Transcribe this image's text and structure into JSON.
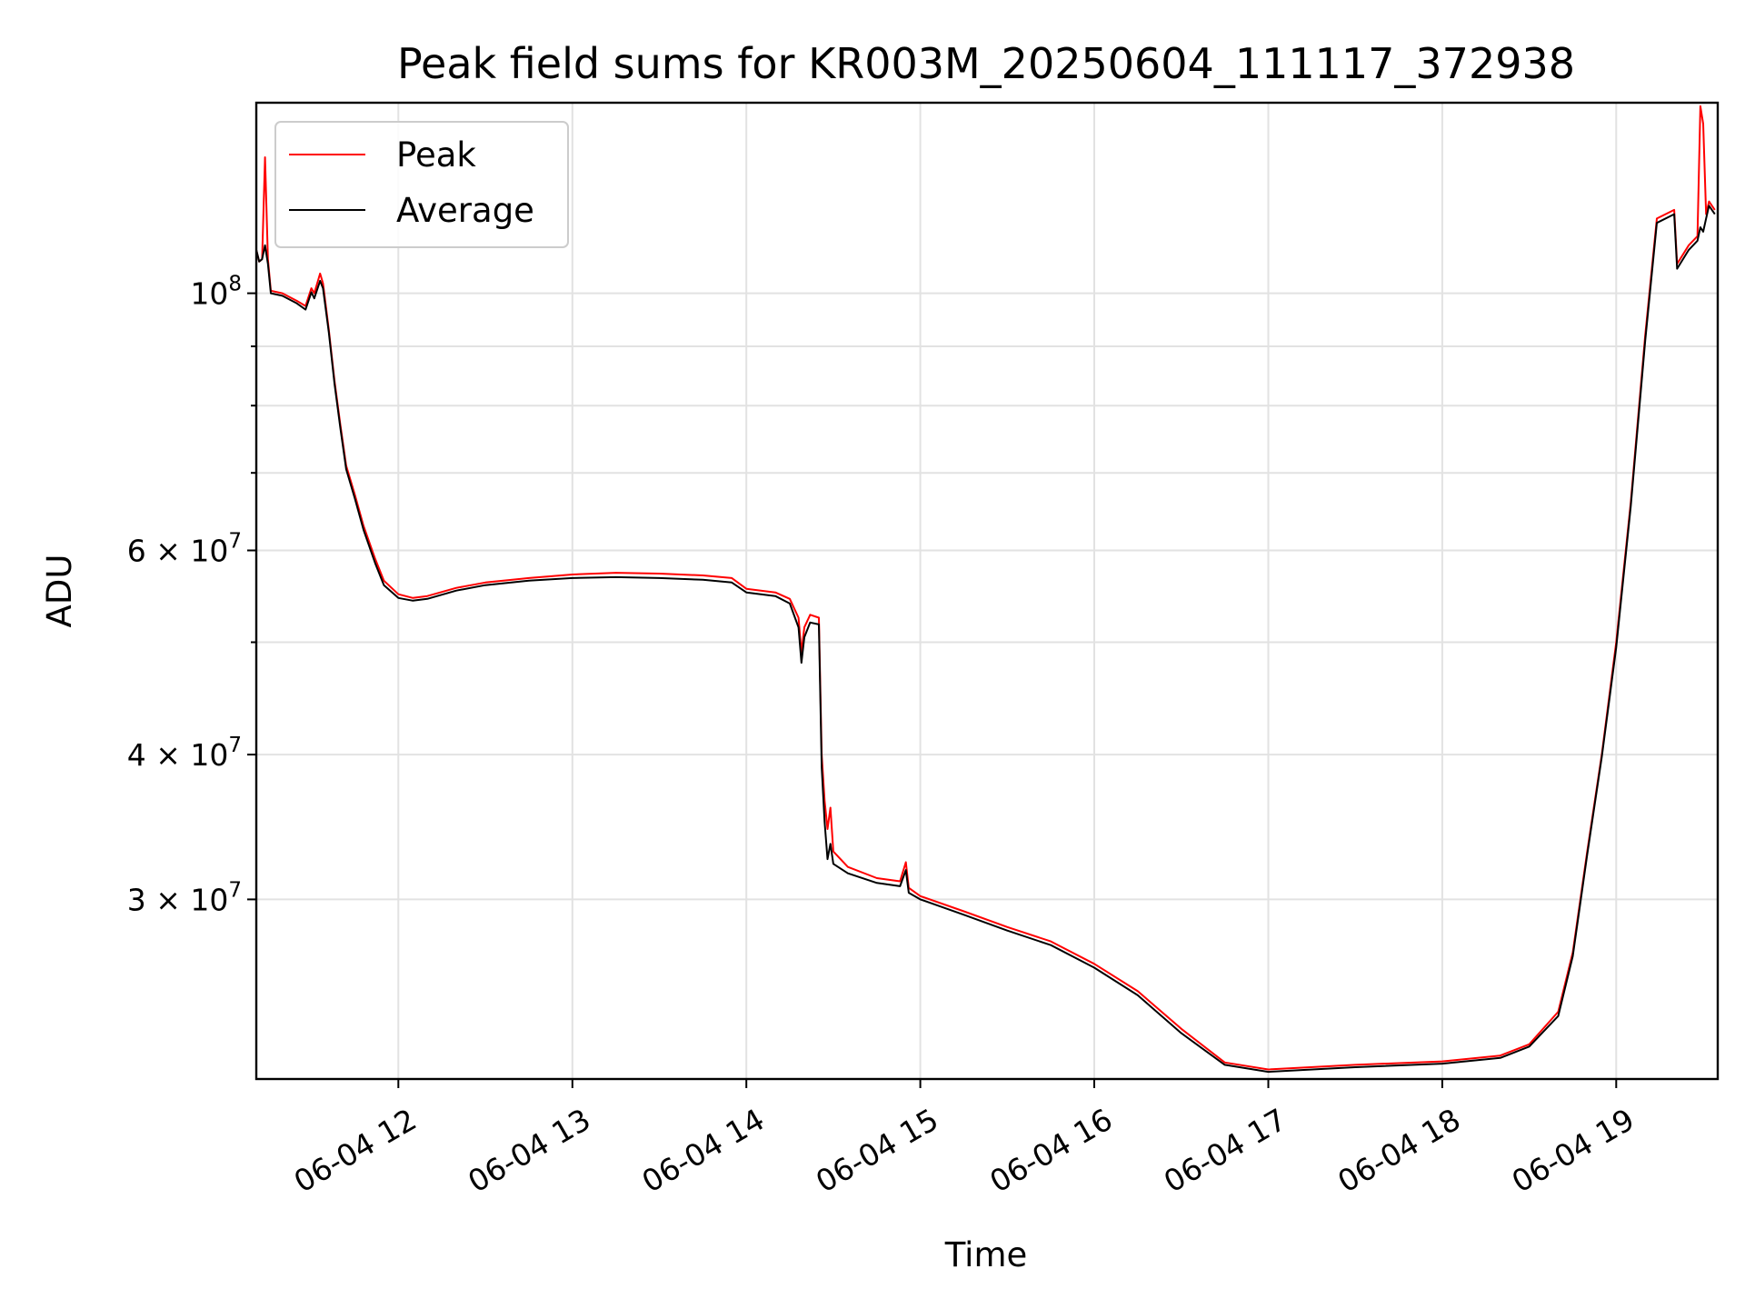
{
  "chart_data": {
    "type": "line",
    "title": "Peak field sums for KR003M_20250604_111117_372938",
    "xlabel": "Time",
    "ylabel": "ADU",
    "x_scale": "time",
    "y_scale": "log",
    "xlim": [
      "2025-06-04 11:11",
      "2025-06-04 19:35"
    ],
    "ylim": [
      21000000,
      146000000
    ],
    "x_ticks": [
      {
        "t": "2025-06-04 12:00",
        "label": "06-04 12"
      },
      {
        "t": "2025-06-04 13:00",
        "label": "06-04 13"
      },
      {
        "t": "2025-06-04 14:00",
        "label": "06-04 14"
      },
      {
        "t": "2025-06-04 15:00",
        "label": "06-04 15"
      },
      {
        "t": "2025-06-04 16:00",
        "label": "06-04 16"
      },
      {
        "t": "2025-06-04 17:00",
        "label": "06-04 17"
      },
      {
        "t": "2025-06-04 18:00",
        "label": "06-04 18"
      },
      {
        "t": "2025-06-04 19:00",
        "label": "06-04 19"
      }
    ],
    "y_major_ticks": [
      {
        "value": 30000000,
        "mantissa": "3",
        "exponent": "7"
      },
      {
        "value": 40000000,
        "mantissa": "4",
        "exponent": "7"
      },
      {
        "value": 60000000,
        "mantissa": "6",
        "exponent": "7"
      },
      {
        "value": 100000000,
        "mantissa": "",
        "exponent": "8"
      }
    ],
    "y_minor_ticks": [
      50000000,
      70000000,
      80000000,
      90000000
    ],
    "grid": true,
    "legend_position": "top-left",
    "series": [
      {
        "name": "Peak",
        "color": "#ff0000",
        "points": [
          [
            "2025-06-04 11:11",
            109000000
          ],
          [
            "2025-06-04 11:12",
            106500000
          ],
          [
            "2025-06-04 11:13",
            107000000
          ],
          [
            "2025-06-04 11:14",
            131000000
          ],
          [
            "2025-06-04 11:15",
            107000000
          ],
          [
            "2025-06-04 11:16",
            100500000
          ],
          [
            "2025-06-04 11:20",
            100000000
          ],
          [
            "2025-06-04 11:25",
            98500000
          ],
          [
            "2025-06-04 11:28",
            97500000
          ],
          [
            "2025-06-04 11:30",
            101000000
          ],
          [
            "2025-06-04 11:31",
            100000000
          ],
          [
            "2025-06-04 11:33",
            104000000
          ],
          [
            "2025-06-04 11:34",
            102000000
          ],
          [
            "2025-06-04 11:36",
            93000000
          ],
          [
            "2025-06-04 11:38",
            84000000
          ],
          [
            "2025-06-04 11:40",
            77000000
          ],
          [
            "2025-06-04 11:42",
            71000000
          ],
          [
            "2025-06-04 11:45",
            67000000
          ],
          [
            "2025-06-04 11:48",
            63000000
          ],
          [
            "2025-06-04 11:52",
            59000000
          ],
          [
            "2025-06-04 11:55",
            56500000
          ],
          [
            "2025-06-04 12:00",
            55000000
          ],
          [
            "2025-06-04 12:05",
            54600000
          ],
          [
            "2025-06-04 12:10",
            54800000
          ],
          [
            "2025-06-04 12:20",
            55700000
          ],
          [
            "2025-06-04 12:30",
            56300000
          ],
          [
            "2025-06-04 12:45",
            56800000
          ],
          [
            "2025-06-04 13:00",
            57200000
          ],
          [
            "2025-06-04 13:15",
            57400000
          ],
          [
            "2025-06-04 13:30",
            57300000
          ],
          [
            "2025-06-04 13:45",
            57100000
          ],
          [
            "2025-06-04 13:55",
            56800000
          ],
          [
            "2025-06-04 14:00",
            55600000
          ],
          [
            "2025-06-04 14:10",
            55200000
          ],
          [
            "2025-06-04 14:15",
            54500000
          ],
          [
            "2025-06-04 14:18",
            52500000
          ],
          [
            "2025-06-04 14:19",
            49000000
          ],
          [
            "2025-06-04 14:20",
            51500000
          ],
          [
            "2025-06-04 14:22",
            52800000
          ],
          [
            "2025-06-04 14:25",
            52500000
          ],
          [
            "2025-06-04 14:26",
            40000000
          ],
          [
            "2025-06-04 14:27",
            36500000
          ],
          [
            "2025-06-04 14:28",
            34500000
          ],
          [
            "2025-06-04 14:29",
            36000000
          ],
          [
            "2025-06-04 14:30",
            33000000
          ],
          [
            "2025-06-04 14:35",
            32000000
          ],
          [
            "2025-06-04 14:45",
            31300000
          ],
          [
            "2025-06-04 14:53",
            31100000
          ],
          [
            "2025-06-04 14:55",
            32300000
          ],
          [
            "2025-06-04 14:56",
            30700000
          ],
          [
            "2025-06-04 15:00",
            30200000
          ],
          [
            "2025-06-04 15:15",
            29300000
          ],
          [
            "2025-06-04 15:30",
            28400000
          ],
          [
            "2025-06-04 15:45",
            27600000
          ],
          [
            "2025-06-04 16:00",
            26400000
          ],
          [
            "2025-06-04 16:15",
            25000000
          ],
          [
            "2025-06-04 16:30",
            23200000
          ],
          [
            "2025-06-04 16:45",
            21700000
          ],
          [
            "2025-06-04 17:00",
            21400000
          ],
          [
            "2025-06-04 17:30",
            21600000
          ],
          [
            "2025-06-04 18:00",
            21750000
          ],
          [
            "2025-06-04 18:20",
            22000000
          ],
          [
            "2025-06-04 18:30",
            22500000
          ],
          [
            "2025-06-04 18:40",
            24000000
          ],
          [
            "2025-06-04 18:45",
            27000000
          ],
          [
            "2025-06-04 18:50",
            33000000
          ],
          [
            "2025-06-04 18:55",
            40000000
          ],
          [
            "2025-06-04 19:00",
            50000000
          ],
          [
            "2025-06-04 19:05",
            66000000
          ],
          [
            "2025-06-04 19:10",
            92000000
          ],
          [
            "2025-06-04 19:14",
            116000000
          ],
          [
            "2025-06-04 19:20",
            118000000
          ],
          [
            "2025-06-04 19:21",
            106000000
          ],
          [
            "2025-06-04 19:25",
            110000000
          ],
          [
            "2025-06-04 19:28",
            112000000
          ],
          [
            "2025-06-04 19:29",
            145000000
          ],
          [
            "2025-06-04 19:30",
            140000000
          ],
          [
            "2025-06-04 19:31",
            117000000
          ],
          [
            "2025-06-04 19:32",
            120000000
          ],
          [
            "2025-06-04 19:34",
            118000000
          ]
        ]
      },
      {
        "name": "Average",
        "color": "#000000",
        "points": [
          [
            "2025-06-04 11:11",
            109000000
          ],
          [
            "2025-06-04 11:12",
            106500000
          ],
          [
            "2025-06-04 11:13",
            107000000
          ],
          [
            "2025-06-04 11:14",
            110000000
          ],
          [
            "2025-06-04 11:15",
            106000000
          ],
          [
            "2025-06-04 11:16",
            100000000
          ],
          [
            "2025-06-04 11:20",
            99500000
          ],
          [
            "2025-06-04 11:25",
            98000000
          ],
          [
            "2025-06-04 11:28",
            96800000
          ],
          [
            "2025-06-04 11:30",
            100200000
          ],
          [
            "2025-06-04 11:31",
            99000000
          ],
          [
            "2025-06-04 11:33",
            102500000
          ],
          [
            "2025-06-04 11:34",
            101000000
          ],
          [
            "2025-06-04 11:36",
            92500000
          ],
          [
            "2025-06-04 11:38",
            83500000
          ],
          [
            "2025-06-04 11:40",
            76500000
          ],
          [
            "2025-06-04 11:42",
            70500000
          ],
          [
            "2025-06-04 11:45",
            66500000
          ],
          [
            "2025-06-04 11:48",
            62500000
          ],
          [
            "2025-06-04 11:52",
            58500000
          ],
          [
            "2025-06-04 11:55",
            56000000
          ],
          [
            "2025-06-04 12:00",
            54600000
          ],
          [
            "2025-06-04 12:05",
            54300000
          ],
          [
            "2025-06-04 12:10",
            54500000
          ],
          [
            "2025-06-04 12:20",
            55400000
          ],
          [
            "2025-06-04 12:30",
            56000000
          ],
          [
            "2025-06-04 12:45",
            56500000
          ],
          [
            "2025-06-04 13:00",
            56800000
          ],
          [
            "2025-06-04 13:15",
            56900000
          ],
          [
            "2025-06-04 13:30",
            56800000
          ],
          [
            "2025-06-04 13:45",
            56600000
          ],
          [
            "2025-06-04 13:55",
            56300000
          ],
          [
            "2025-06-04 14:00",
            55200000
          ],
          [
            "2025-06-04 14:10",
            54800000
          ],
          [
            "2025-06-04 14:15",
            54000000
          ],
          [
            "2025-06-04 14:18",
            51500000
          ],
          [
            "2025-06-04 14:19",
            48000000
          ],
          [
            "2025-06-04 14:20",
            50500000
          ],
          [
            "2025-06-04 14:22",
            52000000
          ],
          [
            "2025-06-04 14:25",
            51800000
          ],
          [
            "2025-06-04 14:26",
            39000000
          ],
          [
            "2025-06-04 14:27",
            35000000
          ],
          [
            "2025-06-04 14:28",
            32500000
          ],
          [
            "2025-06-04 14:29",
            33500000
          ],
          [
            "2025-06-04 14:30",
            32200000
          ],
          [
            "2025-06-04 14:35",
            31600000
          ],
          [
            "2025-06-04 14:45",
            31000000
          ],
          [
            "2025-06-04 14:53",
            30800000
          ],
          [
            "2025-06-04 14:55",
            31800000
          ],
          [
            "2025-06-04 14:56",
            30400000
          ],
          [
            "2025-06-04 15:00",
            30000000
          ],
          [
            "2025-06-04 15:15",
            29100000
          ],
          [
            "2025-06-04 15:30",
            28200000
          ],
          [
            "2025-06-04 15:45",
            27400000
          ],
          [
            "2025-06-04 16:00",
            26200000
          ],
          [
            "2025-06-04 16:15",
            24800000
          ],
          [
            "2025-06-04 16:30",
            23000000
          ],
          [
            "2025-06-04 16:45",
            21600000
          ],
          [
            "2025-06-04 17:00",
            21300000
          ],
          [
            "2025-06-04 17:30",
            21500000
          ],
          [
            "2025-06-04 18:00",
            21650000
          ],
          [
            "2025-06-04 18:20",
            21900000
          ],
          [
            "2025-06-04 18:30",
            22400000
          ],
          [
            "2025-06-04 18:40",
            23800000
          ],
          [
            "2025-06-04 18:45",
            26800000
          ],
          [
            "2025-06-04 18:50",
            32800000
          ],
          [
            "2025-06-04 18:55",
            39800000
          ],
          [
            "2025-06-04 19:00",
            49500000
          ],
          [
            "2025-06-04 19:05",
            65500000
          ],
          [
            "2025-06-04 19:10",
            91000000
          ],
          [
            "2025-06-04 19:14",
            115000000
          ],
          [
            "2025-06-04 19:20",
            117000000
          ],
          [
            "2025-06-04 19:21",
            105000000
          ],
          [
            "2025-06-04 19:25",
            109000000
          ],
          [
            "2025-06-04 19:28",
            111000000
          ],
          [
            "2025-06-04 19:29",
            114000000
          ],
          [
            "2025-06-04 19:30",
            113000000
          ],
          [
            "2025-06-04 19:31",
            116000000
          ],
          [
            "2025-06-04 19:32",
            119000000
          ],
          [
            "2025-06-04 19:34",
            117000000
          ]
        ]
      }
    ]
  }
}
